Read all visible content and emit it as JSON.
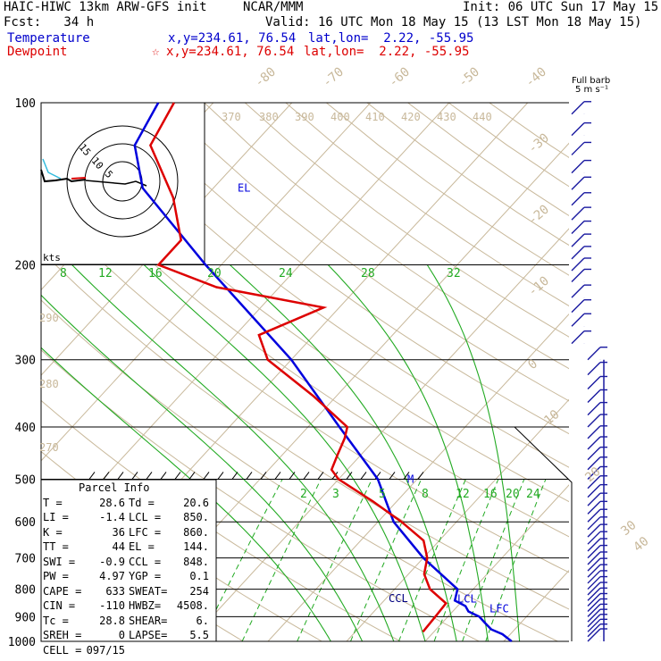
{
  "header": {
    "model": "HAIC-HIWC 13km ARW-GFS init",
    "org": "NCAR/MMM",
    "init": "Init: 06 UTC Sun 17 May 15",
    "fcst": "Fcst:   34 h",
    "valid": "Valid: 16 UTC Mon 18 May 15 (13 LST Mon 18 May 15)",
    "temp_label": "Temperature",
    "temp_xy": "x,y=234.61, 76.54",
    "temp_latlon": "lat,lon=  2.22, -55.95",
    "dew_label": "Dewpoint",
    "dew_star": "☆",
    "dew_xy": "x,y=234.61, 76.54",
    "dew_latlon": "lat,lon=  2.22, -55.95",
    "barb_key_1": "Full barb",
    "barb_key_2": "5 m s⁻¹"
  },
  "colors": {
    "temperature": "#0000dd",
    "dewpoint": "#dd0000",
    "isotherm": "#c8b89a",
    "theta": "#c8b89a",
    "theta_e": "#22aa22",
    "mixing_ratio": "#22aa22",
    "barbs": "#1a1aa0"
  },
  "hodograph": {
    "ring_labels": [
      "15",
      "10",
      "5"
    ],
    "units": "kts"
  },
  "parcel_info": {
    "title": "Parcel Info",
    "rows": [
      [
        "T =",
        "28.6",
        "Td =",
        "20.6"
      ],
      [
        "LI =",
        "-1.4",
        "LCL =",
        "850."
      ],
      [
        "K =",
        "36",
        "LFC =",
        "860."
      ],
      [
        "TT =",
        "44",
        "EL =",
        "144."
      ],
      [
        "SWI =",
        "-0.9",
        "CCL =",
        "848."
      ],
      [
        "PW =",
        "4.97",
        "YGP =",
        "0.1"
      ],
      [
        "CAPE =",
        "633",
        "SWEAT=",
        "254"
      ],
      [
        "CIN =",
        "-110",
        "HWBZ=",
        "4508."
      ],
      [
        "Tc =",
        "28.8",
        "SHEAR=",
        "6."
      ],
      [
        "SREH =",
        "0",
        "LAPSE=",
        "5.5"
      ],
      [
        "CELL =",
        "097/15",
        "",
        ""
      ]
    ]
  },
  "chart_data": {
    "type": "line",
    "title": "",
    "xlabel": "",
    "ylabel": "",
    "pressure_levels": [
      100,
      200,
      300,
      400,
      500,
      600,
      700,
      800,
      900,
      1000
    ],
    "isotherm_labels": [
      "-80",
      "-70",
      "-60",
      "-50",
      "-40",
      "-30",
      "-20",
      "-10",
      "0",
      "10",
      "20",
      "30",
      "40"
    ],
    "theta_labels": [
      "370",
      "380",
      "390",
      "400",
      "410",
      "420",
      "430",
      "440",
      "290",
      "280",
      "270"
    ],
    "theta_e_labels": [
      "8",
      "12",
      "16",
      "20",
      "24",
      "28",
      "32"
    ],
    "mixing_ratio_labels": [
      "2",
      "3",
      "5",
      "8",
      "12",
      "16",
      "20",
      "24"
    ],
    "series": [
      {
        "name": "Temperature",
        "pressure_hPa": [
          1000,
          970,
          950,
          925,
          900,
          880,
          860,
          850,
          840,
          800,
          700,
          600,
          500,
          400,
          300,
          200,
          144,
          120,
          100
        ],
        "temp_C": [
          31,
          29,
          27,
          25.5,
          24,
          22,
          21,
          20,
          19,
          18,
          10,
          2,
          -5,
          -16,
          -30,
          -52,
          -69,
          -75,
          -77
        ]
      },
      {
        "name": "Dewpoint",
        "pressure_hPa": [
          960,
          900,
          850,
          800,
          750,
          700,
          650,
          600,
          550,
          500,
          480,
          450,
          420,
          400,
          350,
          300,
          270,
          240,
          220,
          200,
          180,
          150,
          120,
          100
        ],
        "dewpoint_C": [
          18.6,
          18.4,
          18.2,
          14.5,
          12,
          10.5,
          8,
          3,
          -3,
          -10,
          -12,
          -13,
          -14,
          -15,
          -23,
          -33,
          -37,
          -32,
          -48,
          -58,
          -58,
          -64,
          -73,
          -75
        ]
      }
    ],
    "annotations": [
      {
        "text": "EL",
        "pressure_hPa": 144
      },
      {
        "text": "CCL",
        "pressure_hPa": 848
      },
      {
        "text": "LCL",
        "pressure_hPa": 850
      },
      {
        "text": "LFC",
        "pressure_hPa": 860
      },
      {
        "text": "M",
        "pressure_hPa": 500
      }
    ]
  }
}
